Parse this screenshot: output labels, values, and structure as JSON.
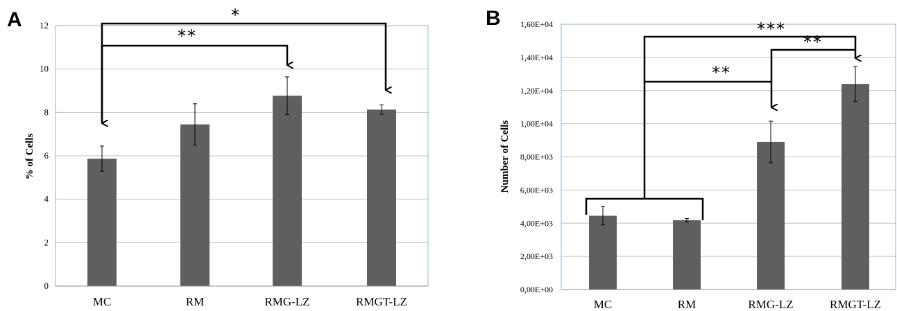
{
  "panels": {
    "a": {
      "letter": "A"
    },
    "b": {
      "letter": "B"
    }
  },
  "colors": {
    "bar": "#5f5f5f",
    "frame": "#8fb2d4",
    "grid": "#c0c0c0"
  },
  "chart_data": [
    {
      "panel": "A",
      "type": "bar",
      "categories": [
        "MC",
        "RM",
        "RMG-LZ",
        "RMGT-LZ"
      ],
      "values": [
        5.87,
        7.45,
        8.77,
        8.13
      ],
      "errors": [
        0.58,
        0.95,
        0.87,
        0.22
      ],
      "ylabel": "% of Cells",
      "ylim": [
        0,
        12
      ],
      "yticks": [
        0,
        2,
        4,
        6,
        8,
        10,
        12
      ],
      "ytick_labels": [
        "0",
        "2",
        "4",
        "6",
        "8",
        "10",
        "12"
      ],
      "grid": true,
      "annotations": [
        {
          "from": "MC",
          "to": "RMG-LZ",
          "label": "**"
        },
        {
          "from": "MC",
          "to": "RMGT-LZ",
          "label": "*"
        }
      ]
    },
    {
      "panel": "B",
      "type": "bar",
      "categories": [
        "MC",
        "RM",
        "RMG-LZ",
        "RMGT-LZ"
      ],
      "values": [
        4450,
        4180,
        8900,
        12400
      ],
      "errors": [
        550,
        100,
        1250,
        1050
      ],
      "ylabel": "Number of Cells",
      "ylim": [
        0,
        16000
      ],
      "yticks": [
        0,
        2000,
        4000,
        6000,
        8000,
        10000,
        12000,
        14000,
        16000
      ],
      "ytick_labels": [
        "0,00E+00",
        "2,00E+03",
        "4,00E+03",
        "6,00E+03",
        "8,00E+03",
        "1,00E+04",
        "1,20E+04",
        "1,40E+04",
        "1,60E+04"
      ],
      "grid": true,
      "annotations": [
        {
          "from": "MC+RM",
          "to": "RMG-LZ",
          "label": "**"
        },
        {
          "from": "RMG-LZ",
          "to": "RMGT-LZ",
          "label": "**"
        },
        {
          "from": "MC+RM",
          "to": "RMGT-LZ",
          "label": "***"
        }
      ]
    }
  ]
}
